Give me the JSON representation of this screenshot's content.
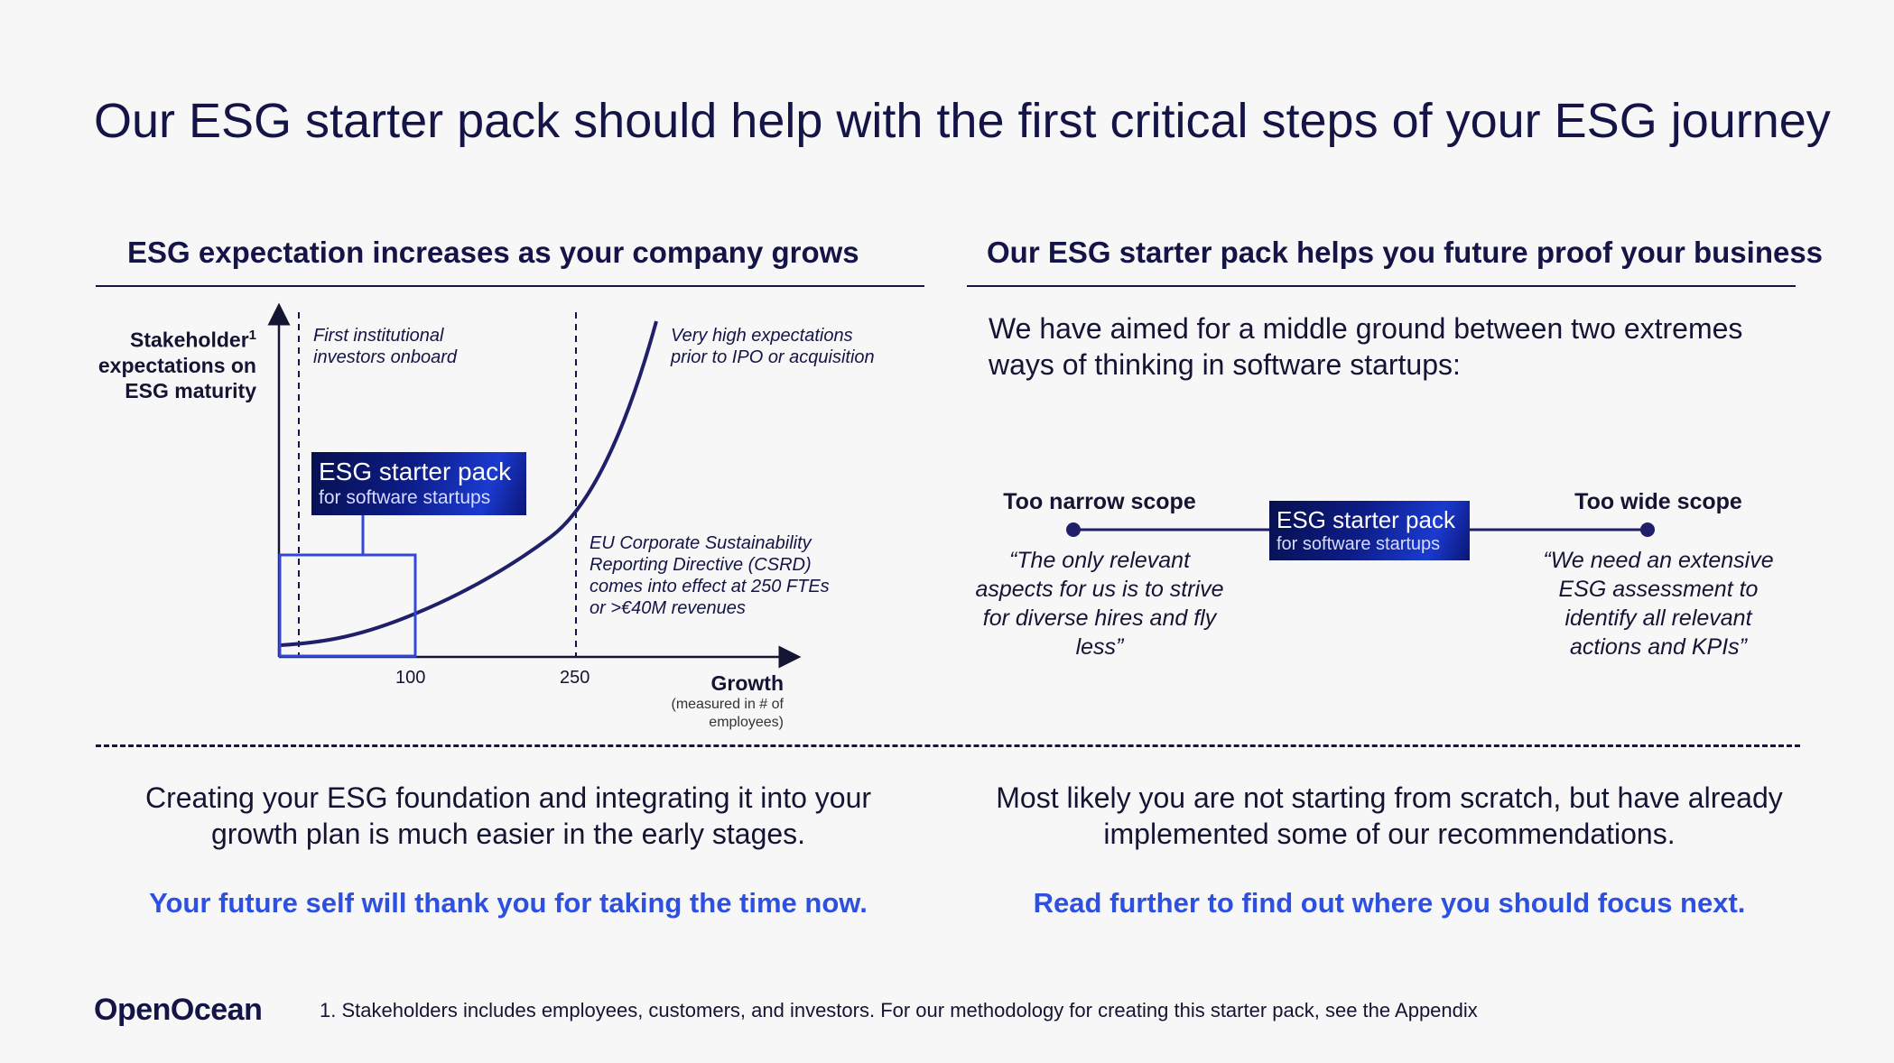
{
  "title": "Our ESG starter pack should help with the first critical steps of your ESG journey",
  "left": {
    "heading": "ESG expectation increases as your company grows",
    "chart": {
      "ylabel_main": "Stakeholder",
      "ylabel_sup": "1",
      "ylabel_rest": "expectations on ESG maturity",
      "annotations": {
        "first_investors": [
          "First institutional",
          "investors onboard"
        ],
        "high_expectations": [
          "Very high  expectations",
          "prior to IPO or acquisition"
        ],
        "csrd": [
          "EU Corporate Sustainability",
          "Reporting Directive (CSRD)",
          "comes into effect at 250 FTEs",
          "or >€40M revenues"
        ]
      },
      "ticks": [
        "100",
        "250"
      ],
      "xlabel": "Growth",
      "xlabel_sub": "(measured in # of employees)"
    },
    "badge": {
      "title": "ESG starter pack",
      "subtitle": "for software startups"
    }
  },
  "right": {
    "heading": "Our ESG starter pack helps you future proof your business",
    "intro": "We have aimed for a middle ground between two extremes ways of thinking in software startups:",
    "narrow": {
      "label": "Too narrow scope",
      "quote": "“The only relevant aspects for us is to strive for diverse hires and fly less”"
    },
    "wide": {
      "label": "Too wide scope",
      "quote": "“We need an extensive ESG assessment to identify all relevant actions and KPIs”"
    },
    "badge": {
      "title": "ESG starter pack",
      "subtitle": "for software startups"
    }
  },
  "bottom_left": {
    "text": "Creating your ESG foundation and integrating it into your growth plan is much easier in the early stages.",
    "cta": "Your future self will thank you for taking the time now."
  },
  "bottom_right": {
    "text": "Most likely you are not starting from scratch, but have already implemented some of our recommendations.",
    "cta": "Read further to find out where you should focus next."
  },
  "footer": {
    "logo": "OpenOcean",
    "footnote": "1. Stakeholders includes employees, customers, and investors. For our methodology for creating this starter pack, see the Appendix"
  },
  "colors": {
    "navy": "#141447",
    "accent_blue": "#2e50e0",
    "box_blue": "#3348d6"
  }
}
